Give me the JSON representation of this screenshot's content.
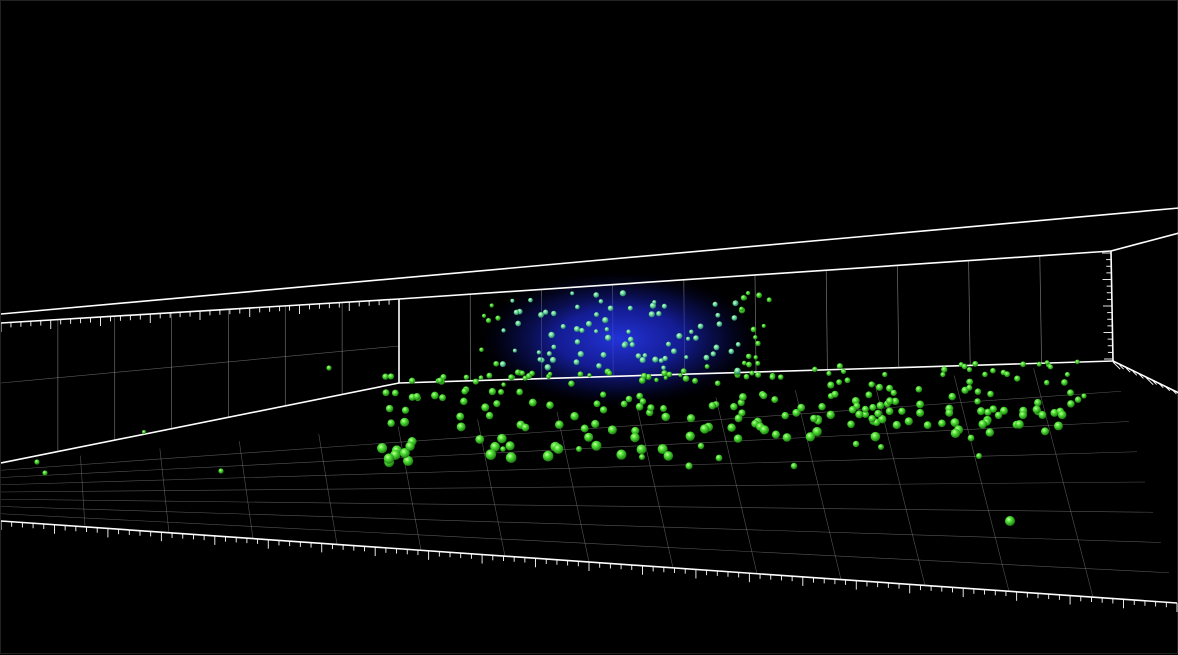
{
  "scene": {
    "background_color": "#000000",
    "frame_color": "#ffffff",
    "grid_color": "#9a9a9a",
    "spot_color": "#39e028",
    "spot_highlight_color": "#b8ff8c",
    "nucleus_color": "#1f2fff",
    "spots": {
      "shape": "sphere",
      "object_type": "green spots"
    },
    "volume": {
      "object_type": "blue nucleus volume"
    }
  }
}
